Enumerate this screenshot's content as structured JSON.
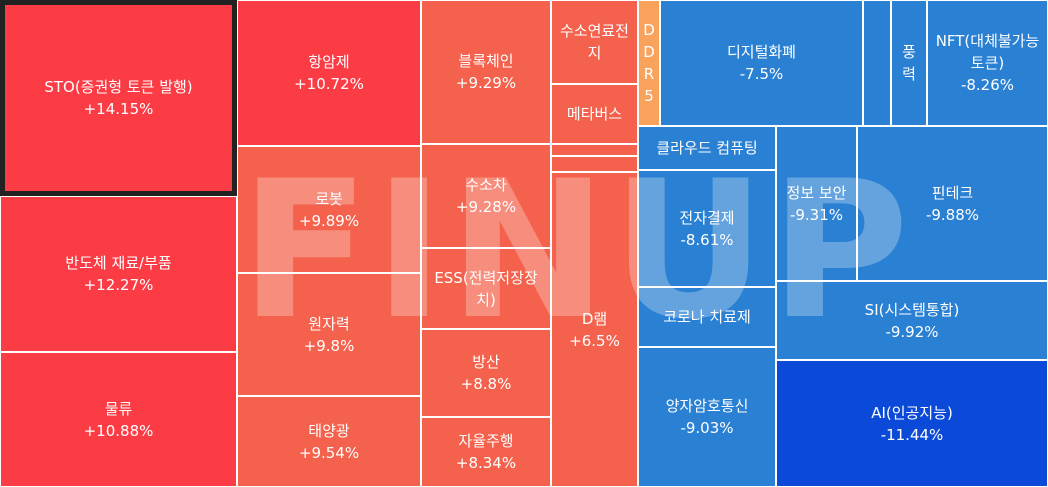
{
  "watermark": "FINUP",
  "colors": {
    "strong_up": "#fc3c44",
    "mid_up": "#f4614c",
    "light_up": "#f8a25c",
    "down": "#2a80d2",
    "strong_down": "#0b4ad8"
  },
  "chart_data": {
    "type": "treemap",
    "title": "",
    "cells": [
      {
        "name": "STO(증권형 토큰 발행)",
        "value": "+14.15%",
        "change": 14.15,
        "selected": true
      },
      {
        "name": "반도체 재료/부품",
        "value": "+12.27%",
        "change": 12.27
      },
      {
        "name": "물류",
        "value": "+10.88%",
        "change": 10.88
      },
      {
        "name": "항암제",
        "value": "+10.72%",
        "change": 10.72
      },
      {
        "name": "로봇",
        "value": "+9.89%",
        "change": 9.89
      },
      {
        "name": "원자력",
        "value": "+9.8%",
        "change": 9.8
      },
      {
        "name": "태양광",
        "value": "+9.54%",
        "change": 9.54
      },
      {
        "name": "블록체인",
        "value": "+9.29%",
        "change": 9.29
      },
      {
        "name": "수소차",
        "value": "+9.28%",
        "change": 9.28
      },
      {
        "name": "ESS(전력저장장치)",
        "value": "",
        "change": null
      },
      {
        "name": "방산",
        "value": "+8.8%",
        "change": 8.8
      },
      {
        "name": "자율주행",
        "value": "+8.34%",
        "change": 8.34
      },
      {
        "name": "수소연료전지",
        "value": "",
        "change": null
      },
      {
        "name": "메타버스",
        "value": "",
        "change": null
      },
      {
        "name": "",
        "value": "",
        "change": null
      },
      {
        "name": "",
        "value": "",
        "change": null
      },
      {
        "name": "D램",
        "value": "+6.5%",
        "change": 6.5
      },
      {
        "name": "DDR5",
        "value": "",
        "change": null
      },
      {
        "name": "디지털화폐",
        "value": "-7.5%",
        "change": -7.5
      },
      {
        "name": "",
        "value": "",
        "change": null
      },
      {
        "name": "풍력",
        "value": "",
        "change": null
      },
      {
        "name": "NFT(대체불가능토큰)",
        "value": "-8.26%",
        "change": -8.26
      },
      {
        "name": "클라우드 컴퓨팅",
        "value": "",
        "change": null
      },
      {
        "name": "전자결제",
        "value": "-8.61%",
        "change": -8.61
      },
      {
        "name": "정보 보안",
        "value": "-9.31%",
        "change": -9.31
      },
      {
        "name": "핀테크",
        "value": "-9.88%",
        "change": -9.88
      },
      {
        "name": "코로나 치료제",
        "value": "",
        "change": null
      },
      {
        "name": "SI(시스템통합)",
        "value": "-9.92%",
        "change": -9.92
      },
      {
        "name": "양자암호통신",
        "value": "-9.03%",
        "change": -9.03
      },
      {
        "name": "AI(인공지능)",
        "value": "-11.44%",
        "change": -11.44
      }
    ]
  }
}
